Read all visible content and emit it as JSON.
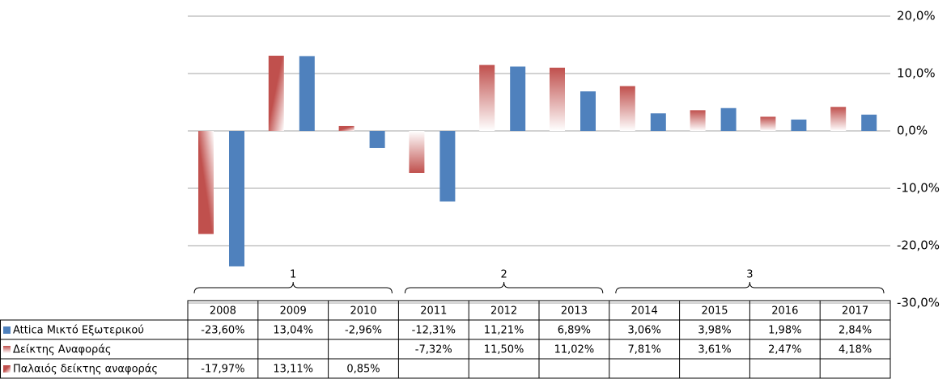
{
  "chart_data": {
    "type": "bar",
    "categories": [
      "2008",
      "2009",
      "2010",
      "2011",
      "2012",
      "2013",
      "2014",
      "2015",
      "2016",
      "2017"
    ],
    "groups": [
      {
        "label": "1",
        "categories": [
          "2008",
          "2009",
          "2010"
        ]
      },
      {
        "label": "2",
        "categories": [
          "2011",
          "2012",
          "2013"
        ]
      },
      {
        "label": "3",
        "categories": [
          "2014",
          "2015",
          "2016",
          "2017"
        ]
      }
    ],
    "series": [
      {
        "name": "Attica Μικτό Εξωτερικού",
        "color": "#4f81bd",
        "values": [
          -23.6,
          13.04,
          -2.96,
          -12.31,
          11.21,
          6.89,
          3.06,
          3.98,
          1.98,
          2.84
        ],
        "value_labels": [
          "-23,60%",
          "13,04%",
          "-2,96%",
          "-12,31%",
          "11,21%",
          "6,89%",
          "3,06%",
          "3,98%",
          "1,98%",
          "2,84%"
        ]
      },
      {
        "name": "Δείκτης Αναφοράς",
        "color": "#c0504d",
        "values": [
          null,
          null,
          null,
          -7.32,
          11.5,
          11.02,
          7.81,
          3.61,
          2.47,
          4.18
        ],
        "value_labels": [
          null,
          null,
          null,
          "-7,32%",
          "11,50%",
          "11,02%",
          "7,81%",
          "3,61%",
          "2,47%",
          "4,18%"
        ]
      },
      {
        "name": "Παλαιός δείκτης αναφοράς",
        "color": "#c0504d",
        "values": [
          -17.97,
          13.11,
          0.85,
          null,
          null,
          null,
          null,
          null,
          null,
          null
        ],
        "value_labels": [
          "-17,97%",
          "13,11%",
          "0,85%",
          null,
          null,
          null,
          null,
          null,
          null,
          null
        ]
      }
    ],
    "ylim": [
      -30,
      20
    ],
    "yticks": [
      {
        "value": -30,
        "label": "-30,0%"
      },
      {
        "value": -20,
        "label": "-20,0%"
      },
      {
        "value": -10,
        "label": "-10,0%"
      },
      {
        "value": 0,
        "label": "0,0%"
      },
      {
        "value": 10,
        "label": "10,0%"
      },
      {
        "value": 20,
        "label": "20,0%"
      }
    ],
    "grid": true
  }
}
